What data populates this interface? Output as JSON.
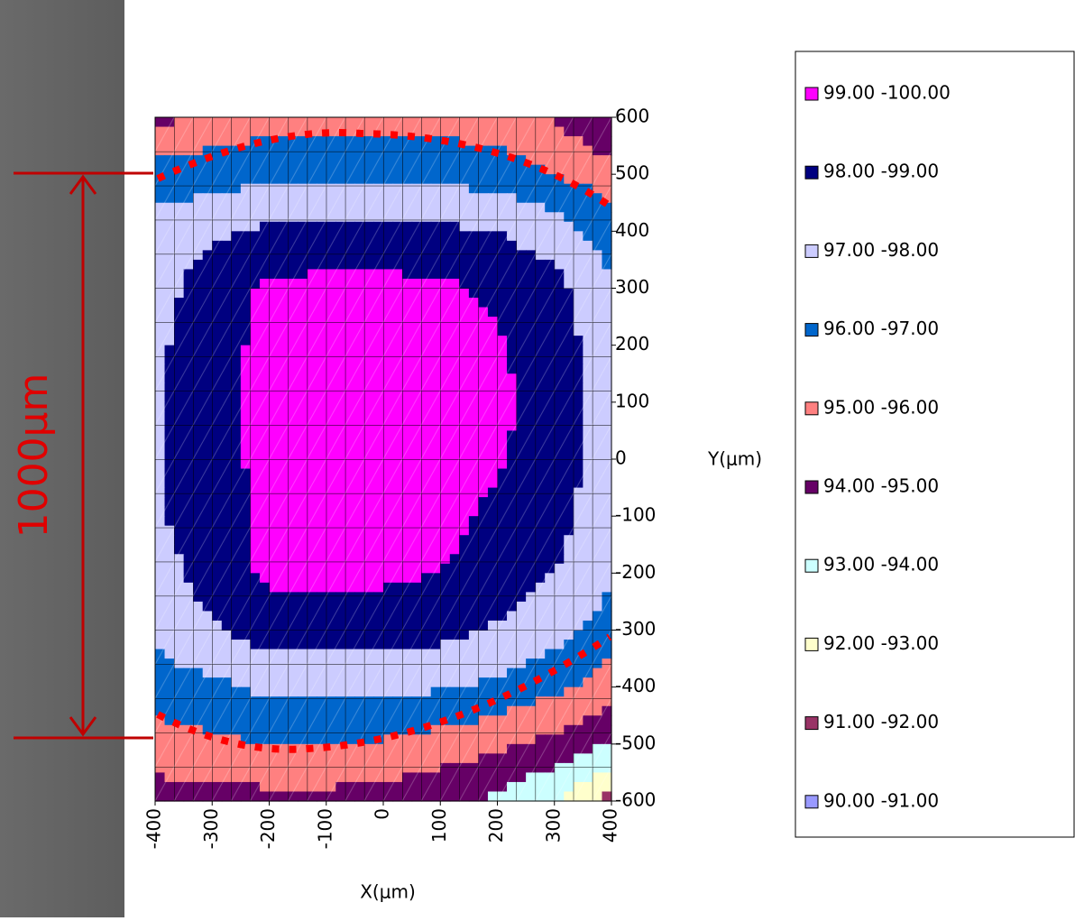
{
  "chart_data": {
    "type": "contour",
    "xlabel": "X(μm)",
    "ylabel": "Y(μm)",
    "annotation": "1000μm",
    "x": [
      -400,
      -300,
      -200,
      -100,
      0,
      100,
      200,
      300,
      400
    ],
    "y": [
      600,
      500,
      400,
      300,
      200,
      100,
      0,
      -100,
      -200,
      -300,
      -400,
      -500,
      -600
    ],
    "z": [
      [
        94.5,
        95.5,
        95.5,
        95.5,
        95.5,
        95.5,
        95.5,
        95.0,
        93.8
      ],
      [
        96.5,
        96.5,
        96.8,
        96.8,
        96.8,
        96.8,
        96.5,
        96.0,
        95.5
      ],
      [
        97.5,
        97.8,
        98.2,
        98.2,
        98.2,
        98.2,
        98.0,
        97.5,
        96.5
      ],
      [
        97.6,
        98.5,
        99.2,
        99.3,
        99.3,
        99.2,
        98.8,
        98.3,
        97.2
      ],
      [
        97.8,
        98.6,
        99.3,
        99.5,
        99.5,
        99.4,
        99.1,
        98.5,
        97.4
      ],
      [
        97.9,
        98.6,
        99.3,
        99.6,
        99.6,
        99.5,
        99.2,
        98.6,
        97.5
      ],
      [
        97.9,
        98.6,
        99.3,
        99.6,
        99.6,
        99.5,
        99.1,
        98.5,
        97.5
      ],
      [
        97.9,
        98.5,
        99.3,
        99.5,
        99.5,
        99.3,
        98.8,
        98.3,
        97.4
      ],
      [
        97.6,
        98.4,
        99.2,
        99.3,
        99.2,
        99.0,
        98.5,
        98.0,
        97.2
      ],
      [
        97.2,
        97.9,
        98.5,
        98.5,
        98.4,
        98.3,
        97.9,
        97.4,
        96.5
      ],
      [
        96.6,
        96.8,
        97.2,
        97.3,
        97.3,
        97.1,
        96.8,
        96.2,
        95.5
      ],
      [
        95.5,
        95.8,
        96.0,
        96.0,
        95.9,
        95.6,
        95.2,
        94.7,
        94.0
      ],
      [
        94.6,
        94.6,
        94.7,
        94.7,
        94.5,
        94.2,
        93.8,
        93.0,
        91.5
      ]
    ],
    "levels": [
      {
        "label": "99.00 -100.00",
        "min": 99,
        "max": 100,
        "color": "#ff00ff"
      },
      {
        "label": "98.00 -99.00",
        "min": 98,
        "max": 99,
        "color": "#000080"
      },
      {
        "label": "97.00 -98.00",
        "min": 97,
        "max": 98,
        "color": "#ccccff"
      },
      {
        "label": "96.00 -97.00",
        "min": 96,
        "max": 97,
        "color": "#0066cc"
      },
      {
        "label": "95.00 -96.00",
        "min": 95,
        "max": 96,
        "color": "#ff8080"
      },
      {
        "label": "94.00 -95.00",
        "min": 94,
        "max": 95,
        "color": "#660066"
      },
      {
        "label": "93.00 -94.00",
        "min": 93,
        "max": 94,
        "color": "#ccffff"
      },
      {
        "label": "92.00 -93.00",
        "min": 92,
        "max": 93,
        "color": "#ffffcc"
      },
      {
        "label": "91.00 -92.00",
        "min": 91,
        "max": 92,
        "color": "#993366"
      },
      {
        "label": "90.00 -91.00",
        "min": 90,
        "max": 91,
        "color": "#9999ff"
      }
    ],
    "xlim": [
      -400,
      400
    ],
    "ylim": [
      -600,
      600
    ],
    "xticks": [
      -400,
      -300,
      -200,
      -100,
      0,
      100,
      200,
      300,
      400
    ],
    "yticks": [
      600,
      500,
      400,
      300,
      200,
      100,
      0,
      -100,
      -200,
      -300,
      -400,
      -500,
      -600
    ]
  }
}
